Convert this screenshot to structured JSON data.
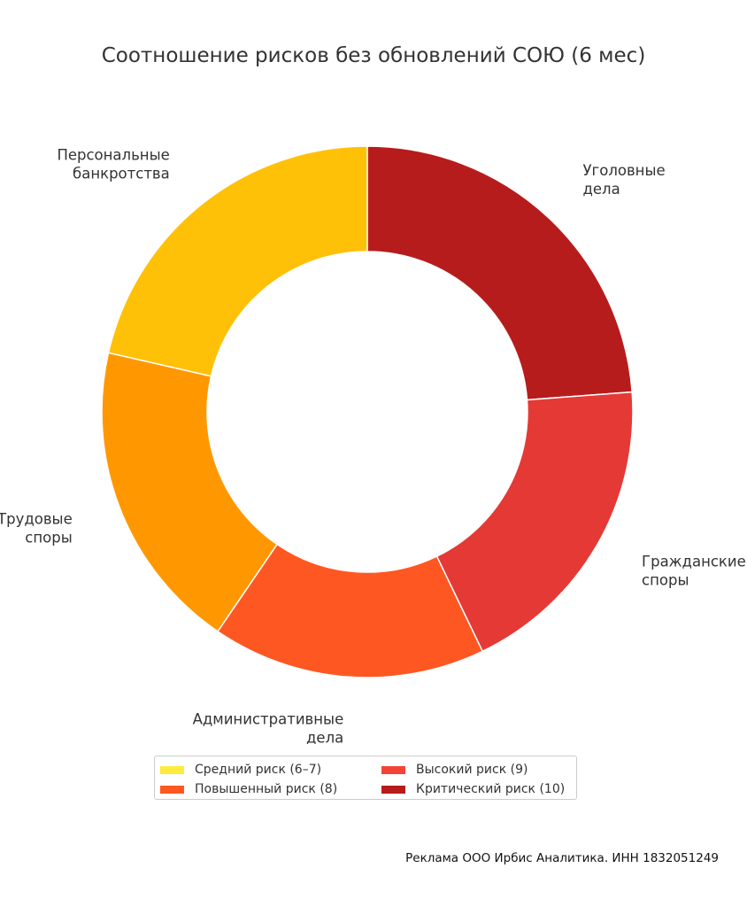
{
  "chart_data": {
    "type": "pie",
    "title": "Соотношение рисков без обновлений СОЮ (6 мес)",
    "categories": [
      "Уголовные дела",
      "Гражданские споры",
      "Административные дела",
      "Трудовые споры",
      "Персональные банкротства"
    ],
    "label_lines": [
      [
        "Уголовные",
        "дела"
      ],
      [
        "Гражданские",
        "споры"
      ],
      [
        "Административные",
        "дела"
      ],
      [
        "Трудовые",
        "споры"
      ],
      [
        "Персональные",
        "банкротства"
      ]
    ],
    "values": [
      10,
      8,
      7,
      8,
      9
    ],
    "colors": [
      "#b71c1c",
      "#e53935",
      "#ff5722",
      "#ff9800",
      "#ffc107"
    ],
    "start": "top",
    "direction": "clockwise",
    "hole": "donut",
    "legend": {
      "placement": "bottom",
      "items": [
        {
          "label": "Средний риск (6–7)",
          "color": "#ffeb3b"
        },
        {
          "label": "Высокий риск (9)",
          "color": "#f44336"
        },
        {
          "label": "Повышенный риск (8)",
          "color": "#ff5722"
        },
        {
          "label": "Критический риск (10)",
          "color": "#b71c1c"
        }
      ]
    }
  },
  "footer": "Реклама ООО Ирбис Аналитика. ИНН 1832051249"
}
